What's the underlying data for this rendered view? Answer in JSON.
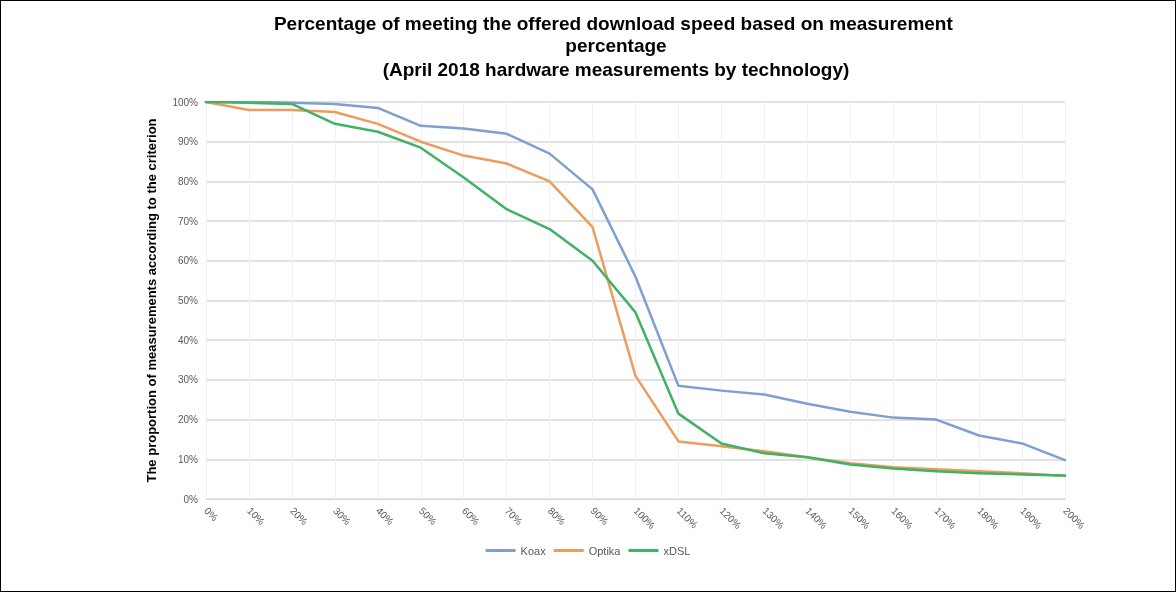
{
  "chart_data": {
    "type": "line",
    "title": "Percentage of meeting the offered download speed based on measurement percentage",
    "subtitle": "(April 2018 hardware measurements by technology)",
    "ylabel": "The proportion of measurements according to the criterion",
    "categories": [
      "0%",
      "10%",
      "20%",
      "30%",
      "40%",
      "50%",
      "60%",
      "70%",
      "80%",
      "90%",
      "100%",
      "110%",
      "120%",
      "130%",
      "140%",
      "150%",
      "160%",
      "170%",
      "180%",
      "190%",
      "200%"
    ],
    "series": [
      {
        "name": "Koax",
        "color": "#7f9fd0",
        "values": [
          100,
          100,
          99.8,
          99.5,
          98.5,
          94,
          93.3,
          92,
          87,
          78,
          56,
          28.5,
          27.3,
          26.3,
          24,
          22,
          20.5,
          20,
          16,
          14,
          9.8
        ]
      },
      {
        "name": "Optika",
        "color": "#ed9c5e",
        "values": [
          100,
          98,
          98,
          97.5,
          94.5,
          90,
          86.5,
          84.5,
          80,
          68.5,
          31,
          14.5,
          13.3,
          12,
          10.5,
          9,
          8,
          7.5,
          7,
          6.5,
          5.8
        ]
      },
      {
        "name": "xDSL",
        "color": "#3fb265",
        "values": [
          100,
          99.8,
          99.5,
          94.5,
          92.5,
          88.5,
          81,
          73,
          68,
          60,
          47,
          21.5,
          14,
          11.5,
          10.5,
          8.7,
          7.7,
          7,
          6.5,
          6.2,
          5.9
        ]
      }
    ],
    "ylim": [
      0,
      100
    ],
    "yticks": [
      {
        "value": 0,
        "label": "0%"
      },
      {
        "value": 10,
        "label": "10%"
      },
      {
        "value": 20,
        "label": "20%"
      },
      {
        "value": 30,
        "label": "30%"
      },
      {
        "value": 40,
        "label": "40%"
      },
      {
        "value": 50,
        "label": "50%"
      },
      {
        "value": 60,
        "label": "60%"
      },
      {
        "value": 70,
        "label": "70%"
      },
      {
        "value": 80,
        "label": "80%"
      },
      {
        "value": 90,
        "label": "90%"
      },
      {
        "value": 100,
        "label": "100%"
      }
    ],
    "grid": true,
    "legend": "bottom",
    "marker": "none",
    "line_style": "solid"
  }
}
